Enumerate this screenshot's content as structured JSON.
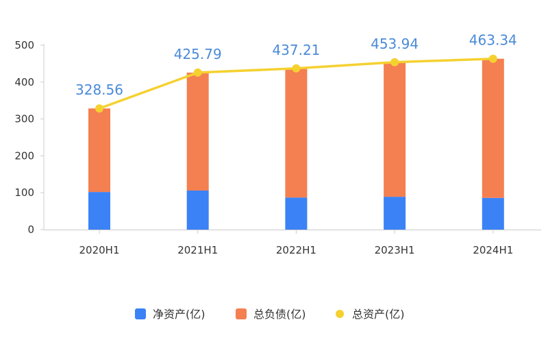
{
  "chart_data": {
    "type": "bar",
    "categories": [
      "2020H1",
      "2021H1",
      "2022H1",
      "2023H1",
      "2024H1"
    ],
    "ylim": [
      0,
      500
    ],
    "y_ticks": [
      0,
      100,
      200,
      300,
      400,
      500
    ],
    "grid": false,
    "legend_position": "bottom",
    "series": [
      {
        "name": "净资产(亿)",
        "kind": "stacked-bar",
        "color": "#3b82f6",
        "values": [
          102,
          106,
          87,
          89,
          86
        ]
      },
      {
        "name": "总负债(亿)",
        "kind": "stacked-bar",
        "color": "#f47f51",
        "values": [
          226.56,
          319.79,
          350.21,
          364.94,
          377.34
        ]
      },
      {
        "name": "总资产(亿)",
        "kind": "line",
        "color": "#f5d130",
        "values": [
          328.56,
          425.79,
          437.21,
          453.94,
          463.34
        ]
      }
    ],
    "data_labels": [
      "328.56",
      "425.79",
      "437.21",
      "453.94",
      "463.34"
    ]
  }
}
